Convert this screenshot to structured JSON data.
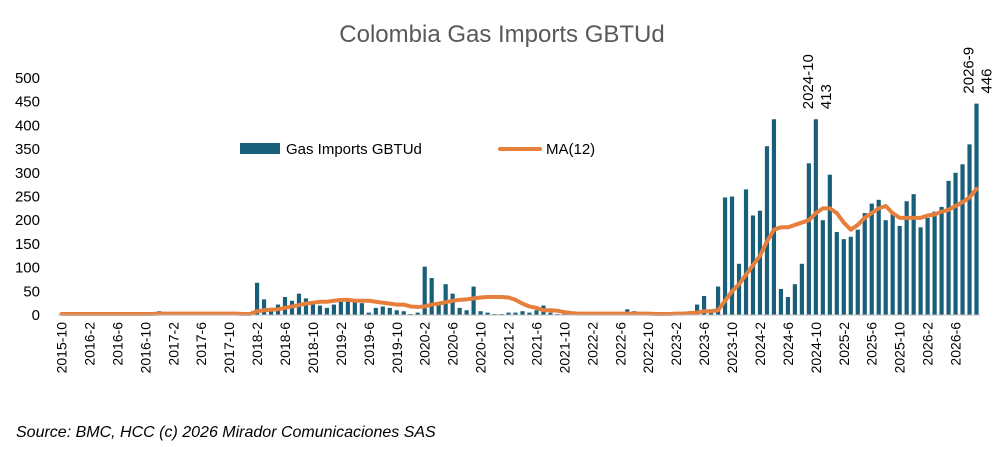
{
  "chart_data": {
    "type": "bar",
    "title": "Colombia Gas Imports GBTUd",
    "xlabel": "",
    "ylabel": "",
    "ylim": [
      0,
      500
    ],
    "yticks": [
      0,
      50,
      100,
      150,
      200,
      250,
      300,
      350,
      400,
      450,
      500
    ],
    "grid": false,
    "legend_position": "top-center",
    "colors": {
      "bars": "#1a5f7a",
      "ma": "#e67e3c",
      "title": "#595959"
    },
    "categories": [
      "2015-10",
      "2015-11",
      "2015-12",
      "2016-1",
      "2016-2",
      "2016-3",
      "2016-4",
      "2016-5",
      "2016-6",
      "2016-7",
      "2016-8",
      "2016-9",
      "2016-10",
      "2016-11",
      "2016-12",
      "2017-1",
      "2017-2",
      "2017-3",
      "2017-4",
      "2017-5",
      "2017-6",
      "2017-7",
      "2017-8",
      "2017-9",
      "2017-10",
      "2017-11",
      "2017-12",
      "2018-1",
      "2018-2",
      "2018-3",
      "2018-4",
      "2018-5",
      "2018-6",
      "2018-7",
      "2018-8",
      "2018-9",
      "2018-10",
      "2018-11",
      "2018-12",
      "2019-1",
      "2019-2",
      "2019-3",
      "2019-4",
      "2019-5",
      "2019-6",
      "2019-7",
      "2019-8",
      "2019-9",
      "2019-10",
      "2019-11",
      "2019-12",
      "2020-1",
      "2020-2",
      "2020-3",
      "2020-4",
      "2020-5",
      "2020-6",
      "2020-7",
      "2020-8",
      "2020-9",
      "2020-10",
      "2020-11",
      "2020-12",
      "2021-1",
      "2021-2",
      "2021-3",
      "2021-4",
      "2021-5",
      "2021-6",
      "2021-7",
      "2021-8",
      "2021-9",
      "2021-10",
      "2021-11",
      "2021-12",
      "2022-1",
      "2022-2",
      "2022-3",
      "2022-4",
      "2022-5",
      "2022-6",
      "2022-7",
      "2022-8",
      "2022-9",
      "2022-10",
      "2022-11",
      "2022-12",
      "2023-1",
      "2023-2",
      "2023-3",
      "2023-4",
      "2023-5",
      "2023-6",
      "2023-7",
      "2023-8",
      "2023-9",
      "2023-10",
      "2023-11",
      "2023-12",
      "2024-1",
      "2024-2",
      "2024-3",
      "2024-4",
      "2024-5",
      "2024-6",
      "2024-7",
      "2024-8",
      "2024-9",
      "2024-10",
      "2024-11",
      "2024-12",
      "2025-1",
      "2025-2",
      "2025-3",
      "2025-4",
      "2025-5",
      "2025-6",
      "2025-7",
      "2025-8",
      "2025-9",
      "2025-10",
      "2025-11",
      "2025-12",
      "2026-1",
      "2026-2",
      "2026-3",
      "2026-4",
      "2026-5",
      "2026-6",
      "2026-7",
      "2026-8",
      "2026-9"
    ],
    "x_tick_labels": [
      "2015-10",
      "2016-2",
      "2016-6",
      "2016-10",
      "2017-2",
      "2017-6",
      "2017-10",
      "2018-2",
      "2018-6",
      "2018-10",
      "2019-2",
      "2019-6",
      "2019-10",
      "2020-2",
      "2020-6",
      "2020-10",
      "2021-2",
      "2021-6",
      "2021-10",
      "2022-2",
      "2022-6",
      "2022-10",
      "2023-2",
      "2023-6",
      "2023-10",
      "2024-2",
      "2024-6",
      "2024-10",
      "2025-2",
      "2025-6",
      "2025-10",
      "2026-2",
      "2026-6"
    ],
    "series": [
      {
        "name": "Gas Imports GBTUd",
        "type": "bar",
        "values": [
          2,
          2,
          2,
          2,
          2,
          2,
          2,
          2,
          2,
          2,
          2,
          2,
          2,
          2,
          8,
          2,
          2,
          2,
          2,
          2,
          2,
          2,
          2,
          2,
          2,
          2,
          2,
          2,
          68,
          33,
          15,
          22,
          38,
          30,
          45,
          35,
          28,
          20,
          15,
          22,
          28,
          30,
          32,
          25,
          5,
          15,
          18,
          15,
          10,
          8,
          2,
          5,
          102,
          78,
          25,
          65,
          45,
          15,
          10,
          60,
          8,
          5,
          2,
          2,
          5,
          5,
          8,
          5,
          10,
          20,
          5,
          2,
          2,
          2,
          2,
          2,
          2,
          2,
          2,
          2,
          2,
          12,
          8,
          2,
          2,
          2,
          2,
          2,
          5,
          5,
          8,
          22,
          40,
          12,
          60,
          248,
          250,
          108,
          265,
          210,
          220,
          356,
          413,
          55,
          38,
          65,
          108,
          320,
          413,
          200,
          296,
          175,
          160,
          165,
          180,
          215,
          235,
          243,
          200,
          215,
          188,
          240,
          255,
          185,
          205,
          218,
          228,
          283,
          300,
          318,
          360,
          446
        ]
      },
      {
        "name": "MA(12)",
        "type": "line",
        "values": [
          2,
          2,
          2,
          2,
          2,
          2,
          2,
          2,
          2,
          2,
          2,
          2,
          2,
          2,
          3,
          3,
          3,
          3,
          3,
          3,
          3,
          3,
          3,
          3,
          3,
          3,
          2,
          2,
          8,
          10,
          11,
          12,
          15,
          18,
          21,
          24,
          26,
          28,
          28,
          30,
          32,
          32,
          30,
          30,
          30,
          28,
          26,
          24,
          22,
          22,
          18,
          17,
          18,
          22,
          24,
          27,
          30,
          32,
          33,
          35,
          37,
          38,
          38,
          38,
          37,
          32,
          24,
          18,
          15,
          10,
          10,
          9,
          6,
          4,
          3,
          3,
          3,
          3,
          3,
          3,
          3,
          3,
          3,
          3,
          3,
          2,
          2,
          2,
          3,
          3,
          4,
          5,
          8,
          8,
          10,
          30,
          50,
          65,
          85,
          105,
          125,
          155,
          180,
          185,
          185,
          190,
          195,
          200,
          215,
          225,
          225,
          215,
          195,
          180,
          190,
          205,
          215,
          225,
          230,
          215,
          205,
          205,
          205,
          205,
          210,
          212,
          218,
          222,
          230,
          238,
          248,
          266
        ]
      }
    ],
    "annotations": [
      {
        "category": "2024-10",
        "value": 413,
        "lines": [
          "2024-10",
          "413"
        ]
      },
      {
        "category": "2026-9",
        "value": 446,
        "lines": [
          "2026-9",
          "446"
        ]
      }
    ],
    "source": "Source: BMC, HCC (c) 2026 Mirador Comunicaciones SAS"
  }
}
